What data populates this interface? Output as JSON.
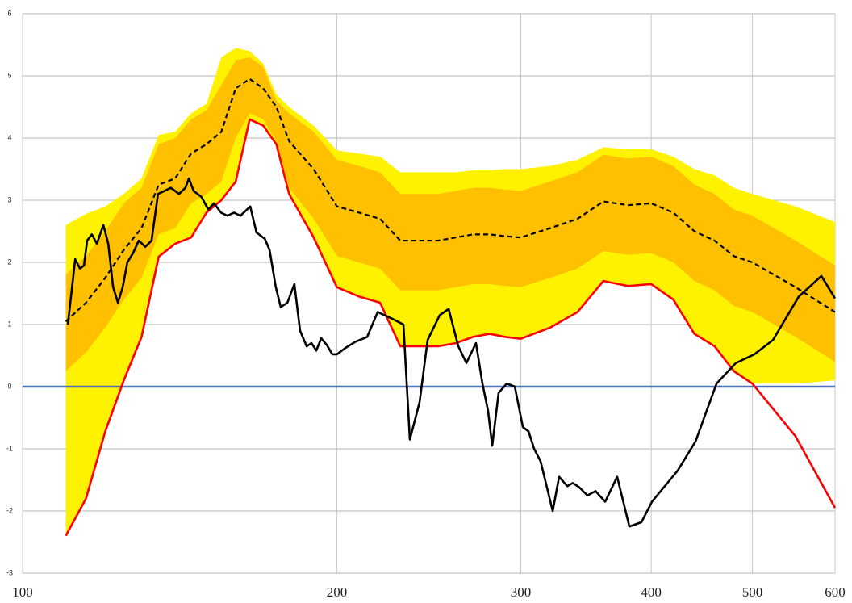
{
  "chart_data": {
    "type": "line",
    "xscale": "log",
    "xlim": [
      100,
      600
    ],
    "xticks": [
      100,
      200,
      300,
      400,
      500,
      600
    ],
    "ylim": [
      -3,
      6
    ],
    "yticks": [
      -3,
      -2,
      -1,
      0,
      1,
      2,
      3,
      4,
      5,
      6
    ],
    "grid": true,
    "x": [
      110,
      115,
      120,
      125,
      130,
      135,
      140,
      145,
      150,
      155,
      160,
      165,
      170,
      175,
      180,
      190,
      200,
      210,
      220,
      230,
      240,
      250,
      260,
      270,
      280,
      290,
      300,
      320,
      340,
      360,
      380,
      400,
      420,
      440,
      460,
      480,
      500,
      550,
      600
    ],
    "bands": [
      {
        "color": "#fff200",
        "upper": [
          2.6,
          2.78,
          2.9,
          3.1,
          3.35,
          4.05,
          4.1,
          4.4,
          4.55,
          5.3,
          5.45,
          5.4,
          5.2,
          4.7,
          4.5,
          4.2,
          3.8,
          3.75,
          3.7,
          3.45,
          3.45,
          3.45,
          3.45,
          3.48,
          3.48,
          3.5,
          3.5,
          3.55,
          3.65,
          3.85,
          3.82,
          3.82,
          3.7,
          3.5,
          3.4,
          3.2,
          3.1,
          2.9,
          2.65
        ],
        "lower": [
          -2.4,
          -1.8,
          -0.72,
          0.1,
          0.8,
          2.09,
          2.3,
          2.4,
          2.8,
          3.0,
          3.3,
          4.3,
          4.2,
          3.9,
          3.1,
          2.4,
          1.6,
          1.45,
          1.35,
          0.65,
          0.65,
          0.65,
          0.7,
          0.8,
          0.85,
          0.8,
          0.77,
          0.95,
          1.2,
          1.7,
          1.62,
          1.65,
          1.4,
          0.85,
          0.65,
          0.25,
          0.05,
          0.05,
          0.1
        ]
      },
      {
        "color": "#ffc000",
        "upper": [
          1.8,
          2.1,
          2.5,
          2.95,
          3.2,
          3.9,
          4.0,
          4.3,
          4.45,
          4.85,
          5.25,
          5.3,
          5.15,
          4.6,
          4.4,
          4.1,
          3.65,
          3.55,
          3.45,
          3.1,
          3.1,
          3.1,
          3.15,
          3.2,
          3.2,
          3.17,
          3.15,
          3.3,
          3.45,
          3.73,
          3.67,
          3.7,
          3.55,
          3.25,
          3.1,
          2.85,
          2.75,
          2.35,
          1.95
        ],
        "lower": [
          0.25,
          0.55,
          0.95,
          1.4,
          1.75,
          2.45,
          2.55,
          2.95,
          3.1,
          3.3,
          4.0,
          4.4,
          4.3,
          3.95,
          3.2,
          2.7,
          2.1,
          2.0,
          1.9,
          1.55,
          1.55,
          1.55,
          1.6,
          1.65,
          1.65,
          1.62,
          1.6,
          1.75,
          1.9,
          2.18,
          2.12,
          2.15,
          2.0,
          1.7,
          1.55,
          1.3,
          1.2,
          0.8,
          0.4
        ]
      }
    ],
    "hline": {
      "value": 0,
      "color": "#4472c4"
    },
    "series": [
      {
        "color": "#ff0000",
        "values": [
          -2.4,
          -1.8,
          -0.72,
          0.1,
          0.8,
          2.09,
          2.3,
          2.4,
          2.8,
          3.0,
          3.3,
          4.3,
          4.2,
          3.9,
          3.1,
          2.4,
          1.6,
          1.45,
          1.35,
          0.65,
          0.65,
          0.65,
          0.7,
          0.8,
          0.85,
          0.8,
          0.77,
          0.95,
          1.2,
          1.7,
          1.62,
          1.65,
          1.4,
          0.85,
          0.65,
          0.25,
          0.05,
          -0.8,
          -1.95
        ]
      },
      {
        "color": "#000000",
        "dash": true,
        "values": [
          1.05,
          1.35,
          1.75,
          2.2,
          2.55,
          3.25,
          3.35,
          3.75,
          3.9,
          4.1,
          4.8,
          4.95,
          4.8,
          4.5,
          3.95,
          3.5,
          2.9,
          2.8,
          2.7,
          2.35,
          2.35,
          2.35,
          2.4,
          2.45,
          2.45,
          2.42,
          2.4,
          2.55,
          2.7,
          2.98,
          2.92,
          2.95,
          2.8,
          2.5,
          2.35,
          2.1,
          2.0,
          1.6,
          1.2
        ]
      },
      {
        "color": "#000000",
        "x": [
          110.5,
          112.3,
          113.5,
          114.5,
          115.3,
          116.5,
          117.8,
          119.5,
          120.8,
          122.1,
          123.4,
          124.7,
          126.0,
          127.6,
          129.2,
          131.1,
          132.9,
          134.8,
          136.8,
          138.7,
          141.2,
          143.2,
          144.3,
          145.8,
          148.4,
          150.6,
          152.5,
          154.9,
          157.1,
          159.4,
          161.7,
          165.2,
          167.5,
          170.6,
          172.4,
          174.8,
          176.7,
          179.3,
          182.1,
          184.4,
          187.1,
          189.1,
          191.1,
          193.2,
          195.6,
          198.0,
          200,
          203.7,
          208.2,
          213.8,
          218.8,
          225.5,
          231.6,
          234.9,
          240.0,
          244.3,
          250.9,
          255.9,
          261.4,
          266.1,
          271.8,
          275.7,
          279.2,
          281.7,
          285.7,
          290.9,
          296.1,
          301.4,
          305.2,
          309.0,
          313.4,
          321.9,
          326.5,
          332.4,
          336.5,
          341.4,
          347.5,
          353.8,
          361.4,
          371.1,
          381.2,
          391.5,
          400.7,
          424.1,
          441.1,
          462.0,
          482.1,
          502.2,
          523.2,
          553.9,
          582.2,
          600
        ],
        "values": [
          1.0,
          2.05,
          1.9,
          1.95,
          2.35,
          2.45,
          2.3,
          2.6,
          2.3,
          1.6,
          1.35,
          1.6,
          2.0,
          2.15,
          2.35,
          2.25,
          2.35,
          3.1,
          3.15,
          3.2,
          3.1,
          3.2,
          3.35,
          3.15,
          3.05,
          2.85,
          2.95,
          2.8,
          2.75,
          2.8,
          2.75,
          2.9,
          2.48,
          2.38,
          2.2,
          1.6,
          1.28,
          1.35,
          1.65,
          0.9,
          0.65,
          0.7,
          0.58,
          0.78,
          0.67,
          0.52,
          0.52,
          0.62,
          0.72,
          0.8,
          1.2,
          1.1,
          1.0,
          -0.85,
          -0.25,
          0.75,
          1.15,
          1.25,
          0.65,
          0.38,
          0.7,
          0.05,
          -0.4,
          -0.95,
          -0.1,
          0.05,
          0.0,
          -0.65,
          -0.72,
          -1.0,
          -1.2,
          -2.0,
          -1.45,
          -1.6,
          -1.55,
          -1.62,
          -1.75,
          -1.68,
          -1.85,
          -1.45,
          -2.25,
          -2.18,
          -1.85,
          -1.35,
          -0.88,
          0.05,
          0.38,
          0.52,
          0.75,
          1.45,
          1.78,
          1.42
        ]
      }
    ]
  }
}
